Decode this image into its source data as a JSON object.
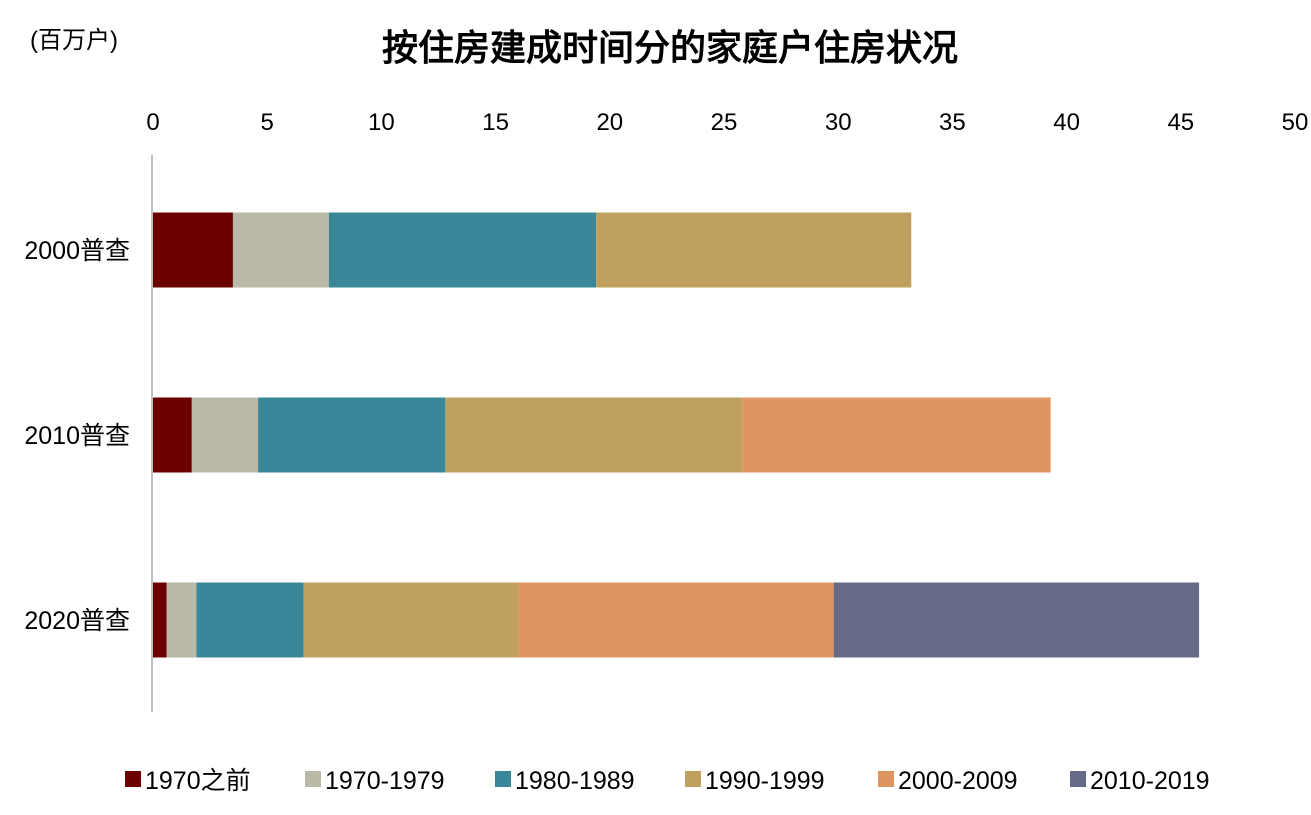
{
  "chart_data": {
    "type": "bar",
    "orientation": "horizontal",
    "stacked": true,
    "title": "按住房建成时间分的家庭户住房状况",
    "unit_label": "(百万户)",
    "xlabel": "",
    "ylabel": "",
    "xlim": [
      0,
      50
    ],
    "x_ticks": [
      0,
      5,
      10,
      15,
      20,
      25,
      30,
      35,
      40,
      45,
      50
    ],
    "x_axis_position": "top",
    "grid": false,
    "legend_position": "bottom",
    "categories": [
      "2000普查",
      "2010普查",
      "2020普查"
    ],
    "series": [
      {
        "name": "1970之前",
        "color": "#6B0000",
        "values": [
          3.5,
          1.7,
          0.6
        ]
      },
      {
        "name": "1970-1979",
        "color": "#BAB8A6",
        "values": [
          4.2,
          2.9,
          1.3
        ]
      },
      {
        "name": "1980-1989",
        "color": "#3A8799",
        "values": [
          11.7,
          8.2,
          4.7
        ]
      },
      {
        "name": "1990-1999",
        "color": "#BFA05E",
        "values": [
          13.8,
          13.0,
          9.4
        ]
      },
      {
        "name": "2000-2009",
        "color": "#DF955F",
        "values": [
          0,
          13.5,
          13.8
        ]
      },
      {
        "name": "2010-2019",
        "color": "#666B87",
        "values": [
          0,
          0,
          16.0
        ]
      }
    ]
  }
}
